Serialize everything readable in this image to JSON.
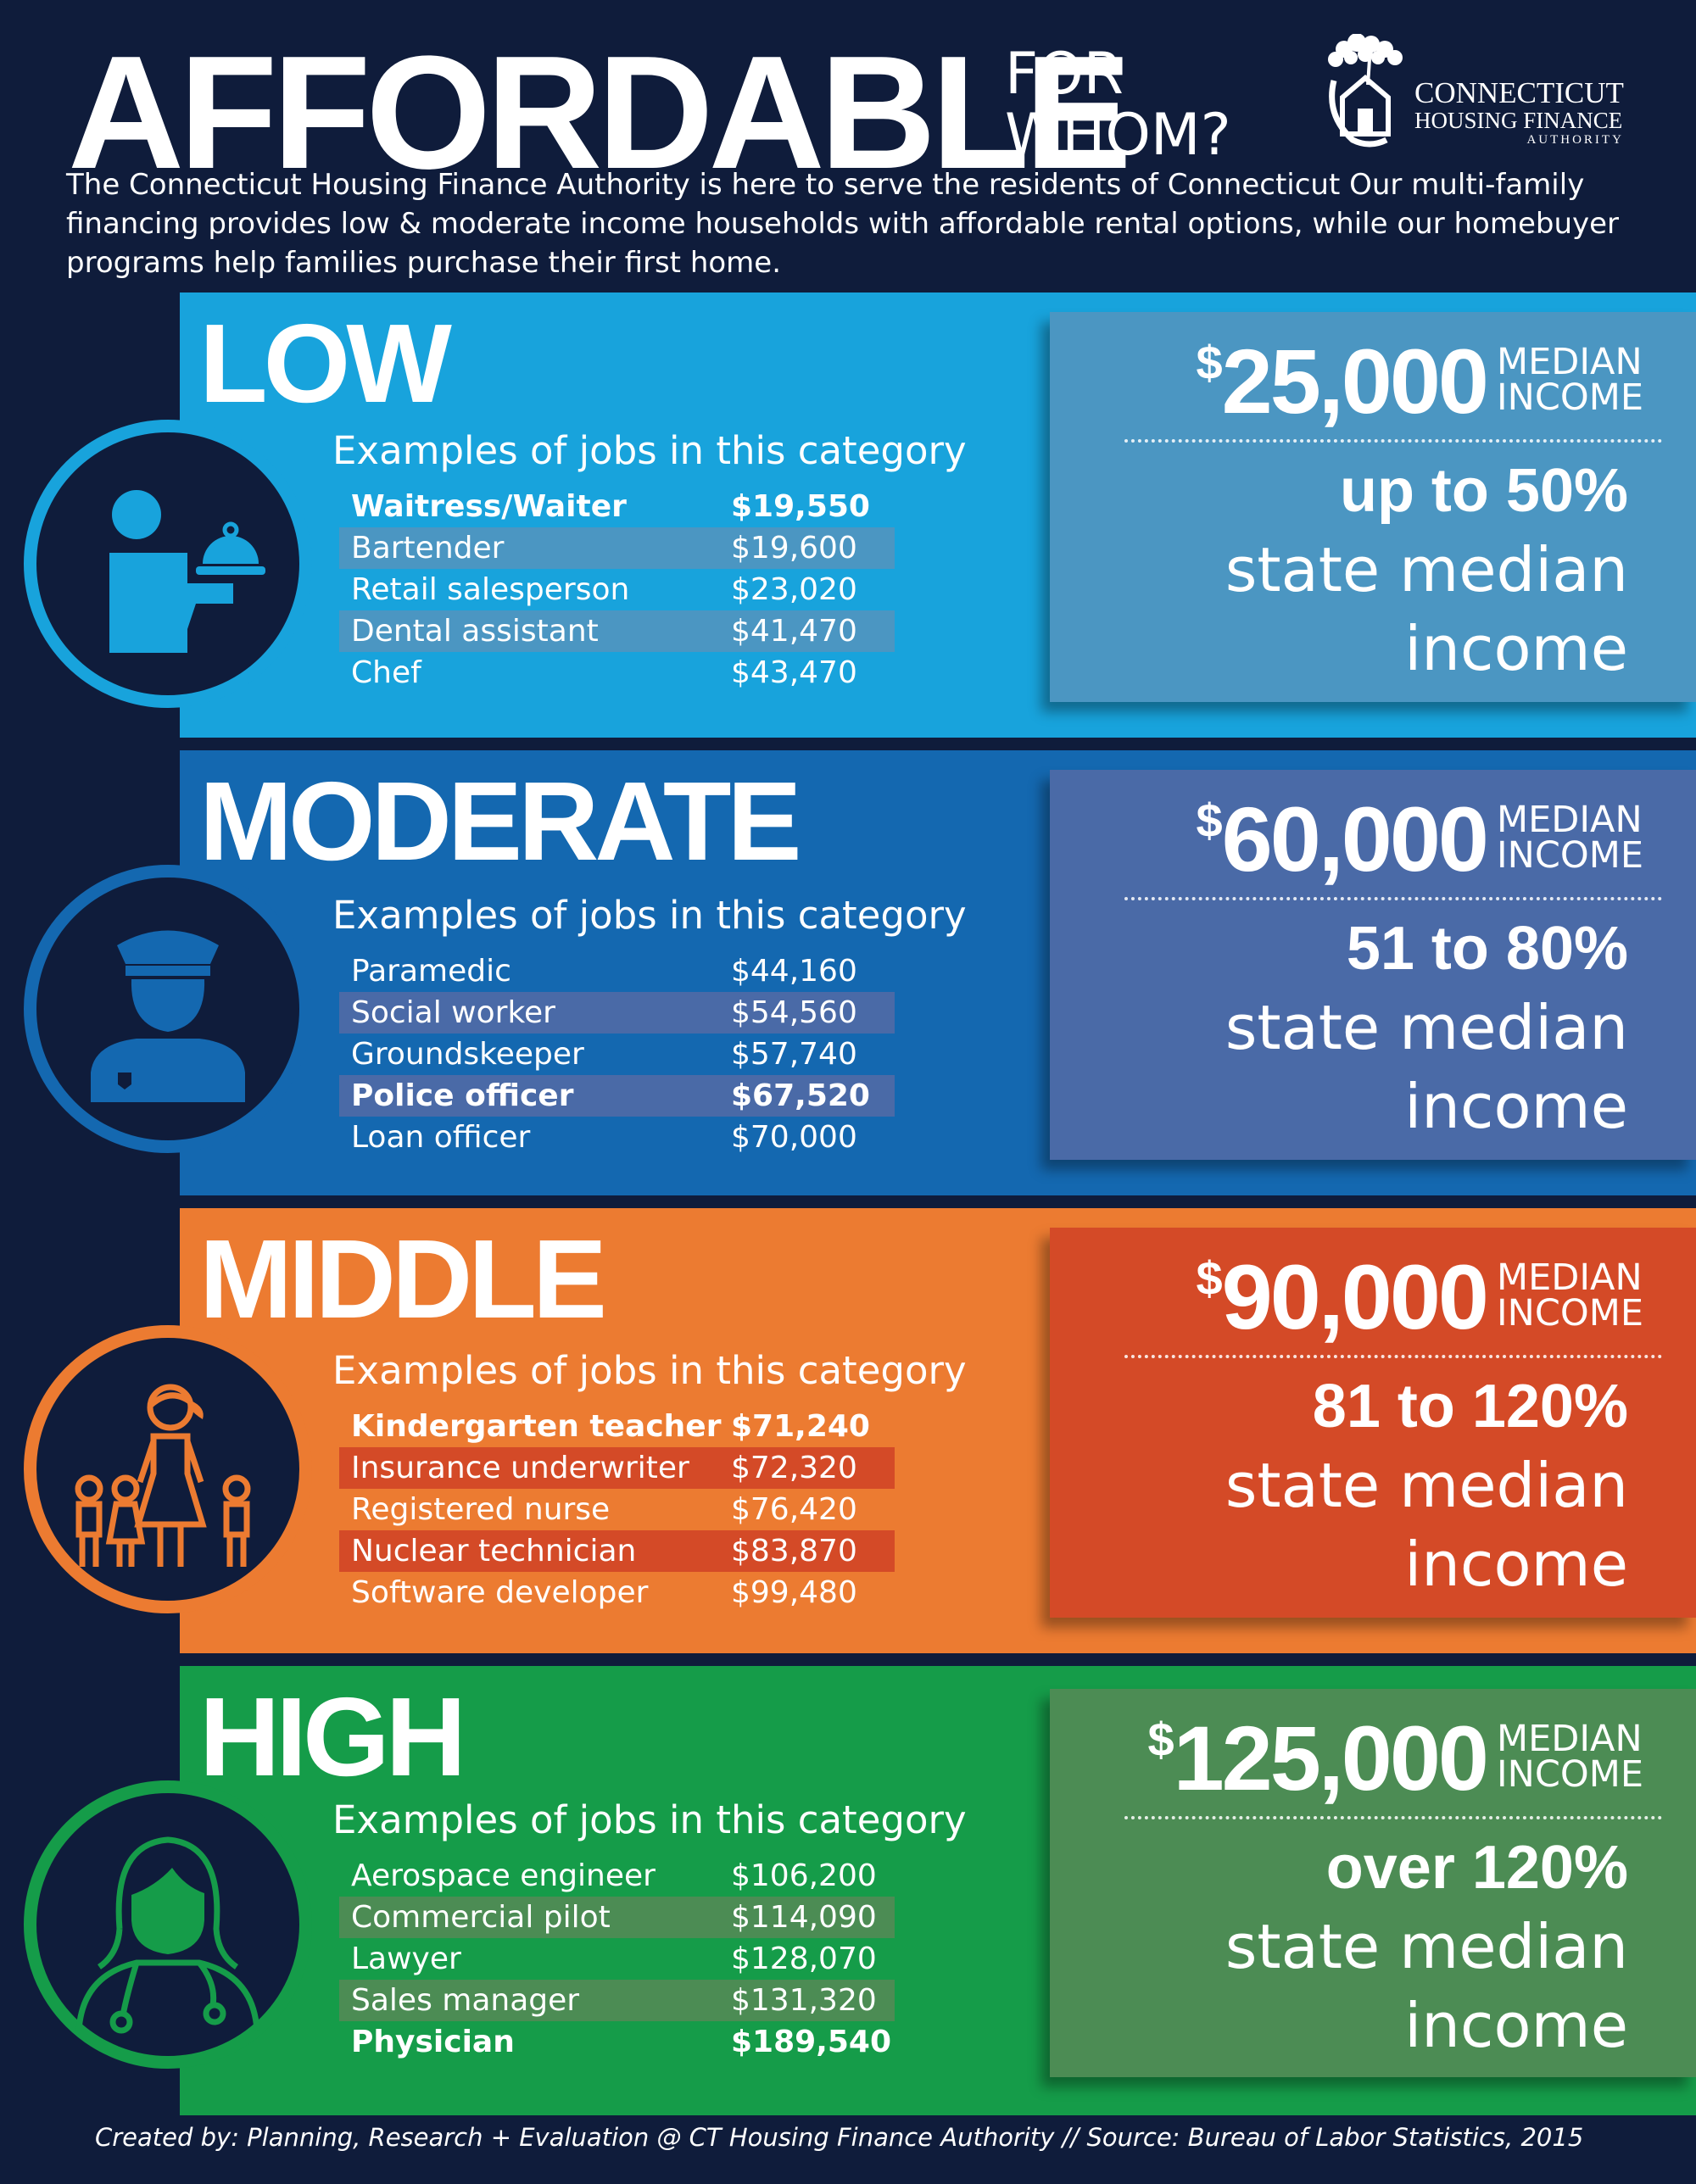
{
  "header": {
    "title": "AFFORDABLE",
    "subtitle_line1": "FOR",
    "subtitle_line2": "WHOM?",
    "intro": "The Connecticut Housing Finance Authority is here to serve the residents of Connecticut Our multi-family financing provides low & moderate income households with affordable rental options, while our homebuyer programs help families purchase their first home."
  },
  "logo": {
    "line1": "CONNECTICUT",
    "line2": "HOUSING FINANCE",
    "line3": "AUTHORITY",
    "icon": "house-tree-logo-icon"
  },
  "tiers": [
    {
      "name": "LOW",
      "jobs_heading": "Examples of jobs in this category",
      "icon": "waiter-icon",
      "amount": "25,000",
      "median_label_1": "MEDIAN",
      "median_label_2": "INCOME",
      "percent": "up to 50%",
      "smi_1": "state median",
      "smi_2": "income",
      "jobs": [
        {
          "name": "Waitress/Waiter",
          "salary": "$19,550"
        },
        {
          "name": "Bartender",
          "salary": "$19,600"
        },
        {
          "name": "Retail salesperson",
          "salary": "$23,020"
        },
        {
          "name": "Dental assistant",
          "salary": "$41,470"
        },
        {
          "name": "Chef",
          "salary": "$43,470"
        }
      ]
    },
    {
      "name": "MODERATE",
      "jobs_heading": "Examples of jobs in this category",
      "icon": "police-officer-icon",
      "amount": "60,000",
      "median_label_1": "MEDIAN",
      "median_label_2": "INCOME",
      "percent": "51 to 80%",
      "smi_1": "state median",
      "smi_2": "income",
      "jobs": [
        {
          "name": "Paramedic",
          "salary": "$44,160"
        },
        {
          "name": "Social worker",
          "salary": "$54,560"
        },
        {
          "name": "Groundskeeper",
          "salary": "$57,740"
        },
        {
          "name": "Police officer",
          "salary": "$67,520"
        },
        {
          "name": "Loan officer",
          "salary": "$70,000"
        }
      ]
    },
    {
      "name": "MIDDLE",
      "jobs_heading": "Examples of jobs in this category",
      "icon": "teacher-with-children-icon",
      "amount": "90,000",
      "median_label_1": "MEDIAN",
      "median_label_2": "INCOME",
      "percent": "81 to 120%",
      "smi_1": "state median",
      "smi_2": "income",
      "jobs": [
        {
          "name": "Kindergarten teacher",
          "salary": "$71,240"
        },
        {
          "name": "Insurance underwriter",
          "salary": "$72,320"
        },
        {
          "name": "Registered nurse",
          "salary": "$76,420"
        },
        {
          "name": "Nuclear technician",
          "salary": "$83,870"
        },
        {
          "name": "Software developer",
          "salary": "$99,480"
        }
      ]
    },
    {
      "name": "HIGH",
      "jobs_heading": "Examples of jobs in this category",
      "icon": "physician-icon",
      "amount": "125,000",
      "median_label_1": "MEDIAN",
      "median_label_2": "INCOME",
      "percent": "over 120%",
      "smi_1": "state median",
      "smi_2": "income",
      "jobs": [
        {
          "name": "Aerospace engineer",
          "salary": "$106,200"
        },
        {
          "name": "Commercial pilot",
          "salary": "$114,090"
        },
        {
          "name": "Lawyer",
          "salary": "$128,070"
        },
        {
          "name": "Sales manager",
          "salary": "$131,320"
        },
        {
          "name": "Physician",
          "salary": "$189,540"
        }
      ]
    }
  ],
  "currency_symbol": "$",
  "colors": {
    "background": "#0f1c3b",
    "low_band": "#18a3dc",
    "low_stat": "#4b96c2",
    "moderate_band": "#1468b0",
    "moderate_stat": "#4a6aa7",
    "middle_band": "#ec7b31",
    "middle_stat": "#d44a27",
    "high_band": "#159c49",
    "high_stat": "#4c8c54"
  },
  "footer": "Created by: Planning, Research + Evaluation @ CT Housing Finance Authority // Source: Bureau of Labor Statistics, 2015"
}
